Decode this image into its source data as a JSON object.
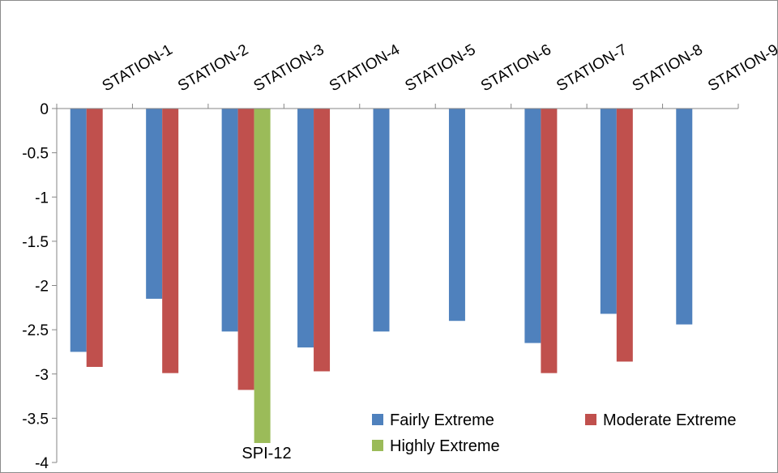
{
  "chart_data": {
    "type": "bar",
    "title": "SPI-12",
    "xlabel": "",
    "ylabel": "",
    "ylim": [
      -4,
      0
    ],
    "yticks": [
      0,
      -0.5,
      -1,
      -1.5,
      -2,
      -2.5,
      -3,
      -3.5,
      -4
    ],
    "ytick_labels": [
      "0",
      "-0.5",
      "-1",
      "-1.5",
      "-2",
      "-2.5",
      "-3",
      "-3.5",
      "-4"
    ],
    "grid": false,
    "legend_position": "bottom-right",
    "categories": [
      "STATION-1",
      "STATION-2",
      "STATION-3",
      "STATION-4",
      "STATION-5",
      "STATION-6",
      "STATION-7",
      "STATION-8",
      "STATION-9"
    ],
    "series": [
      {
        "name": "Fairly Extreme",
        "color": "#4f81bd",
        "values": [
          -2.75,
          -2.15,
          -2.52,
          -2.7,
          -2.52,
          -2.4,
          -2.65,
          -2.32,
          -2.44
        ]
      },
      {
        "name": "Moderate Extreme",
        "color": "#c0504d",
        "values": [
          -2.92,
          -2.99,
          -3.18,
          -2.97,
          null,
          null,
          -2.99,
          -2.86,
          null
        ]
      },
      {
        "name": "Highly Extreme",
        "color": "#9bbb59",
        "values": [
          null,
          null,
          -3.78,
          null,
          null,
          null,
          null,
          null,
          null
        ]
      }
    ]
  }
}
